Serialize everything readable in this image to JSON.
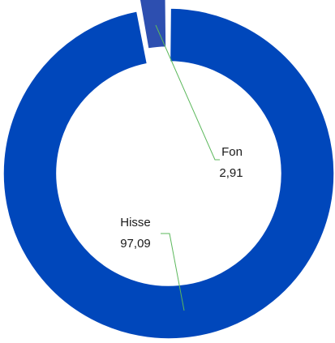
{
  "chart_data": {
    "type": "pie",
    "style": "donut",
    "slices": [
      {
        "name": "Fon",
        "value": 2.91,
        "value_label": "2,91",
        "color": "#2d4fb0",
        "exploded": true
      },
      {
        "name": "Hisse",
        "value": 97.09,
        "value_label": "97,09",
        "color": "#0047bb",
        "exploded": false
      }
    ],
    "leader_line_color": "#5cb85c",
    "legend": "none"
  }
}
